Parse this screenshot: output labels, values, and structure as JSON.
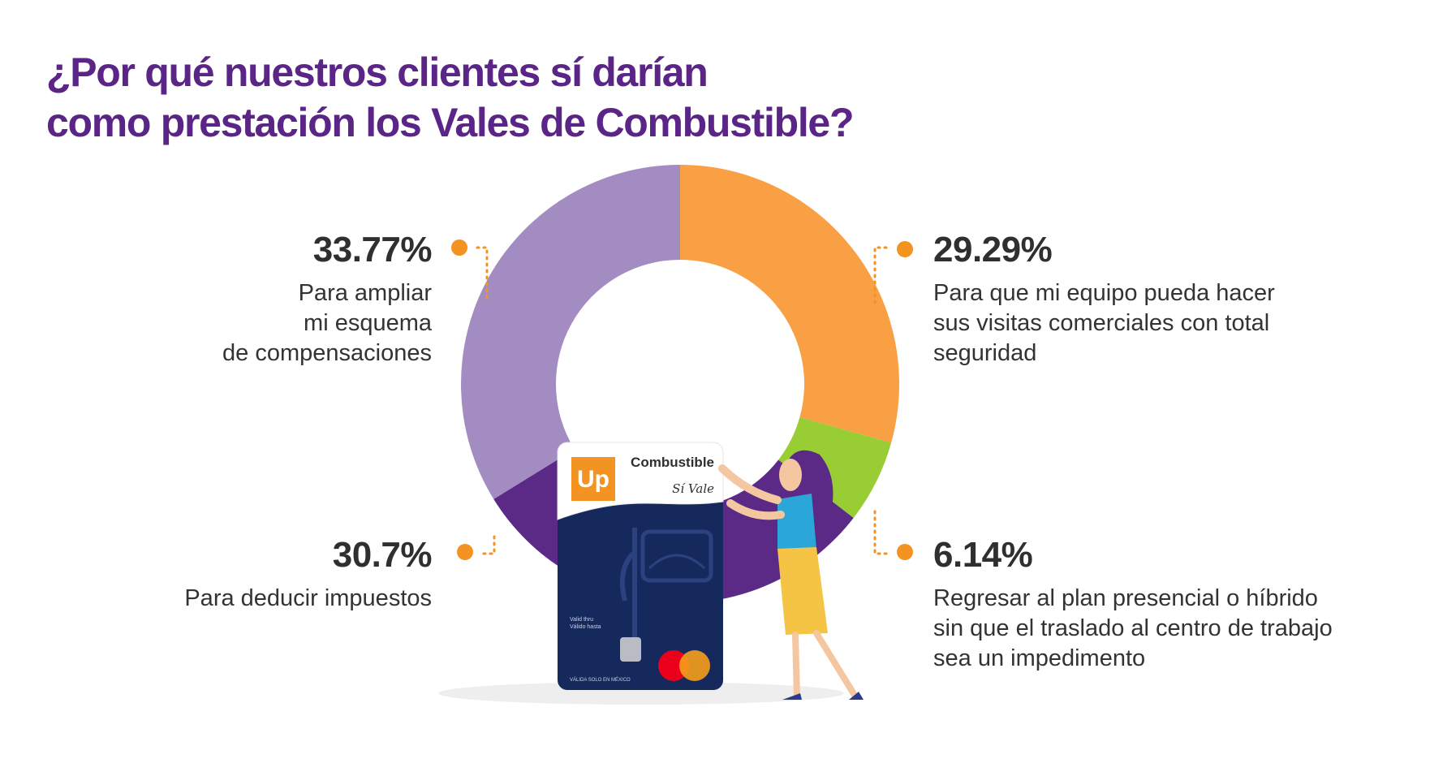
{
  "title_lines": [
    "¿Por qué nuestros clientes sí darían",
    "como prestación los Vales de Combustible?"
  ],
  "chart_data": {
    "type": "pie",
    "style": "donut",
    "categories": [
      "Para que mi equipo pueda hacer sus visitas comerciales con total seguridad",
      "Regresar al plan presencial o híbrido sin que el traslado al centro de trabajo sea un impedimento",
      "Para deducir impuestos",
      "Para ampliar mi esquema de compensaciones"
    ],
    "values": [
      29.29,
      6.14,
      30.7,
      33.77
    ],
    "colors": [
      "#f9a044",
      "#98cd34",
      "#5b2a86",
      "#a38cc2"
    ],
    "labels": [
      {
        "value_text": "29.29%",
        "desc_lines": [
          "Para que mi equipo pueda hacer",
          "sus visitas comerciales con total",
          "seguridad"
        ]
      },
      {
        "value_text": "6.14%",
        "desc_lines": [
          "Regresar al plan presencial o híbrido",
          "sin que el traslado al centro de trabajo",
          "sea un impedimento"
        ]
      },
      {
        "value_text": "30.7%",
        "desc_lines": [
          "Para deducir impuestos"
        ]
      },
      {
        "value_text": "33.77%",
        "desc_lines": [
          "Para ampliar",
          "mi esquema",
          "de compensaciones"
        ]
      }
    ],
    "leader_color": "#f39322",
    "start_angle": "12 o'clock, clockwise"
  },
  "card": {
    "logo_text": "Up",
    "product_label": "Combustible",
    "brand_script": "Sí Vale",
    "small_text_1": "Valid thru",
    "small_text_2": "Válido hasta",
    "footer_text": "VÁLIDA SOLO EN MÉXICO",
    "logo_color": "#f39322",
    "card_color": "#16295d"
  }
}
